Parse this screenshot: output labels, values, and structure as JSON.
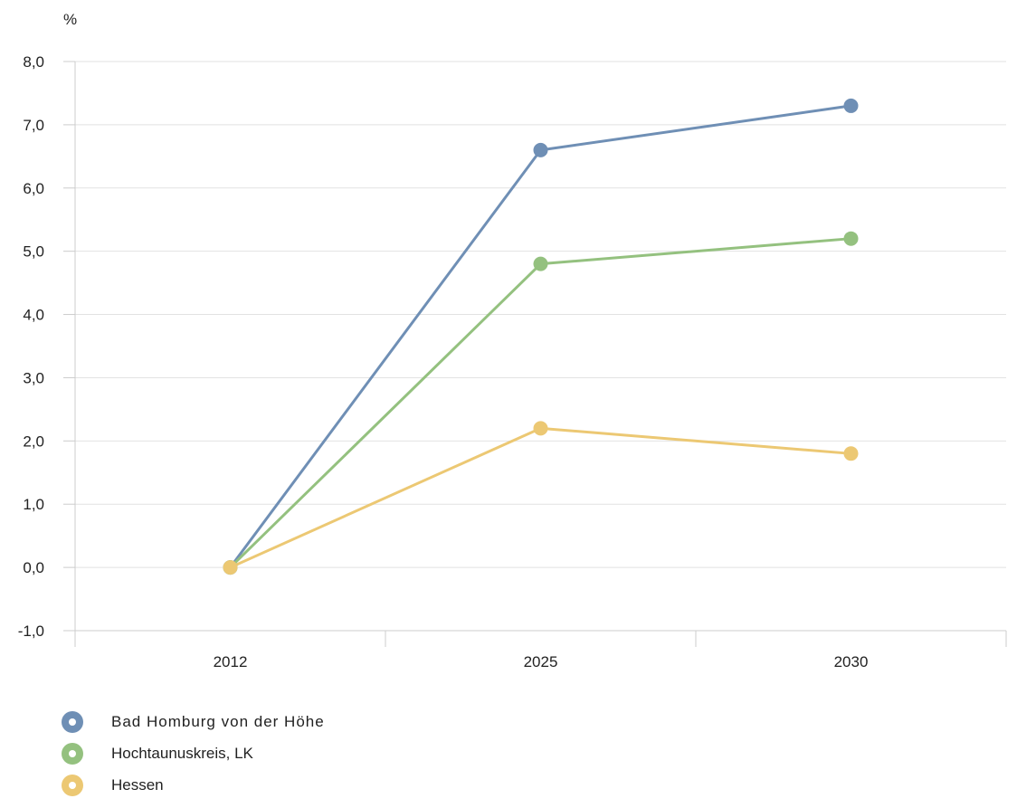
{
  "chart_data": {
    "type": "line",
    "unit_label": "%",
    "categories": [
      "2012",
      "2025",
      "2030"
    ],
    "y_ticks": [
      "8,0",
      "7,0",
      "6,0",
      "5,0",
      "4,0",
      "3,0",
      "2,0",
      "1,0",
      "0,0",
      "-1,0"
    ],
    "ylim": [
      -1,
      8
    ],
    "grid": true,
    "legend_position": "bottom-left",
    "series": [
      {
        "name": "Bad Homburg von der Höhe",
        "color": "#6f8fb5",
        "values": [
          0.0,
          6.6,
          7.3
        ]
      },
      {
        "name": "Hochtaunuskreis, LK",
        "color": "#94c17f",
        "values": [
          0.0,
          4.8,
          5.2
        ]
      },
      {
        "name": "Hessen",
        "color": "#ecc873",
        "values": [
          0.0,
          2.2,
          1.8
        ]
      }
    ]
  }
}
